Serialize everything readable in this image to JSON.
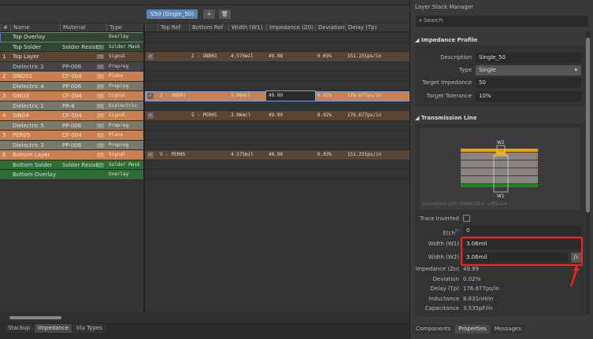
{
  "toolbar": {
    "profile": "S50 (Single_50)",
    "add_icon": "plus-icon",
    "delete_icon": "trash-icon"
  },
  "stack": {
    "headers": [
      "#",
      "Name",
      "Material",
      "Type"
    ],
    "rows": [
      {
        "num": "",
        "name": "Top Overlay",
        "material": "",
        "type": "Overlay",
        "bg": "#2f4634",
        "fg": "#ddd"
      },
      {
        "num": "",
        "name": "Top Solder",
        "material": "Solder Resist",
        "type": "Solder Mask",
        "bg": "#2f4634",
        "fg": "#ddd"
      },
      {
        "num": "1",
        "name": "Top Layer",
        "material": "",
        "type": "Signal",
        "bg": "#5a4535",
        "fg": "#ddd"
      },
      {
        "num": "",
        "name": "Dielectric 2",
        "material": "PP-006",
        "type": "Prepreg",
        "bg": "#454545",
        "fg": "#ccc"
      },
      {
        "num": "2",
        "name": "GND02",
        "material": "CF-004",
        "type": "Plane",
        "bg": "#c97f4f",
        "fg": "#f3e3d6"
      },
      {
        "num": "",
        "name": "Dielectric 4",
        "material": "PP-006",
        "type": "Prepreg",
        "bg": "#7a7868",
        "fg": "#e3e3dc"
      },
      {
        "num": "3",
        "name": "SIN03",
        "material": "CF-004",
        "type": "Signal",
        "bg": "#c97f4f",
        "fg": "#f3e3d6"
      },
      {
        "num": "",
        "name": "Dielectric 1",
        "material": "FR-4",
        "type": "Dielectric",
        "bg": "#7a7868",
        "fg": "#e3e3dc"
      },
      {
        "num": "4",
        "name": "SIN04",
        "material": "CF-004",
        "type": "Signal",
        "bg": "#c97f4f",
        "fg": "#f3e3d6"
      },
      {
        "num": "",
        "name": "Dielectric 5",
        "material": "PP-006",
        "type": "Prepreg",
        "bg": "#7a7868",
        "fg": "#e3e3dc"
      },
      {
        "num": "5",
        "name": "PER05",
        "material": "CF-004",
        "type": "Plane",
        "bg": "#c97f4f",
        "fg": "#f3e3d6"
      },
      {
        "num": "",
        "name": "Dielectric 3",
        "material": "PP-006",
        "type": "Prepreg",
        "bg": "#7a7868",
        "fg": "#e3e3dc"
      },
      {
        "num": "6",
        "name": "Bottom Layer",
        "material": "",
        "type": "Signal",
        "bg": "#c97f4f",
        "fg": "#f3e3d6"
      },
      {
        "num": "",
        "name": "Bottom Solder",
        "material": "Solder Resist",
        "type": "Solder Mask",
        "bg": "#2e6e36",
        "fg": "#ddd"
      },
      {
        "num": "",
        "name": "Bottom Overlay",
        "material": "",
        "type": "Overlay",
        "bg": "#2e6e36",
        "fg": "#ddd"
      }
    ]
  },
  "impedance": {
    "headers": [
      "",
      "Top Ref",
      "Bottom Ref",
      "Width (W1)",
      "Impedance (Z0)",
      "Deviation",
      "Delay (Tp)"
    ],
    "rows": [
      null,
      null,
      {
        "checked": true,
        "top": "",
        "bottom": "2 - GND02",
        "width": "4.575mil",
        "z0": "49.98",
        "dev": "0.03%",
        "delay": "151.231ps/in"
      },
      null,
      null,
      null,
      {
        "checked": true,
        "top": "2 - GND02",
        "bottom": "",
        "width": "3.06mil",
        "z0": "49.99",
        "dev": "0.02%",
        "delay": "176.677ps/in",
        "selected": true
      },
      null,
      {
        "checked": true,
        "top": "",
        "bottom": "5 - PER05",
        "width": "3.06mil",
        "z0": "49.99",
        "dev": "0.02%",
        "delay": "176.677ps/in"
      },
      null,
      null,
      null,
      {
        "checked": true,
        "top": "5 - PER05",
        "bottom": "",
        "width": "4.575mil",
        "z0": "49.98",
        "dev": "0.03%",
        "delay": "151.231ps/in"
      },
      null,
      null
    ]
  },
  "bottom_tabs": [
    "Stackup",
    "Impedance",
    "Via Types"
  ],
  "panel": {
    "title": "Layer Stack Manager",
    "search_placeholder": "Search",
    "profile_section": "Impedance Profile",
    "description_label": "Description",
    "description": "Single_50",
    "type_label": "Type",
    "type": "Single",
    "target_label": "Target Impedance",
    "target": "50",
    "tolerance_label": "Target Tolerance",
    "tolerance": "10%",
    "tl_section": "Transmission Line",
    "diagram_w2": "W2",
    "diagram_w1": "W1",
    "diagram_caption": "Simulated with SIMBEOR® software",
    "trace_inverted_label": "Trace Inverted",
    "trace_inverted": false,
    "etch_label": "Etch",
    "etch_sup": "[?]",
    "etch": "0",
    "w1_label": "Width (W1)",
    "w1": "3.06mil",
    "w2_label": "Width (W2)",
    "w2": "3.06mil",
    "fx": "fx",
    "results": [
      {
        "label": "Impedance (Zo)",
        "value": "49.99"
      },
      {
        "label": "Deviation",
        "value": "0.02%"
      },
      {
        "label": "Delay (Tp)",
        "value": "176.677ps/in"
      },
      {
        "label": "Inductance",
        "value": "8.831nH/in"
      },
      {
        "label": "Capacitance",
        "value": "3.535pF/in"
      }
    ],
    "tabs": [
      "Components",
      "Properties",
      "Messages"
    ]
  },
  "colors": {
    "accent": "#5b84b1",
    "highlight": "#ff2020",
    "signal_orange": "#c97f4f"
  }
}
